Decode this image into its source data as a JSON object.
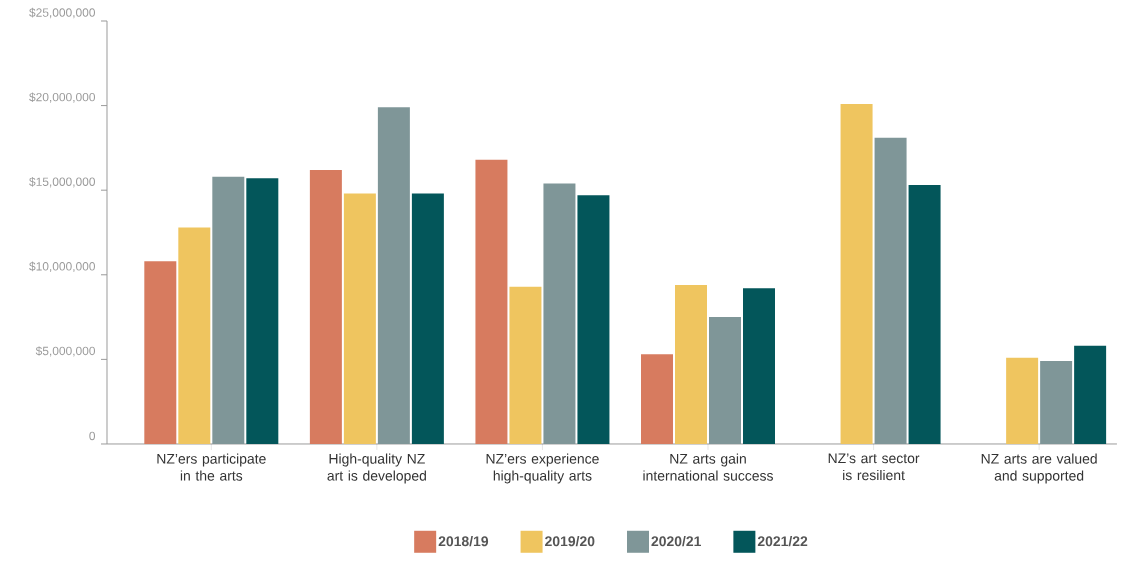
{
  "chart_data": {
    "type": "bar",
    "categories": [
      "NZ’ers participate in the arts",
      "High-quality NZ art is developed",
      "NZ’ers experience high-quality arts",
      "NZ arts gain international success",
      "NZ’s art sector is resilient",
      "NZ arts are valued and supported"
    ],
    "series": [
      {
        "name": "2018/19",
        "color": "#d77b5f",
        "values": [
          10800000,
          16200000,
          16800000,
          5300000,
          null,
          null
        ]
      },
      {
        "name": "2019/20",
        "color": "#efc55f",
        "values": [
          12800000,
          14800000,
          9300000,
          9400000,
          20100000,
          5100000
        ]
      },
      {
        "name": "2020/21",
        "color": "#7f9698",
        "values": [
          15800000,
          19900000,
          15400000,
          7500000,
          18100000,
          4900000
        ]
      },
      {
        "name": "2021/22",
        "color": "#03565a",
        "values": [
          15700000,
          14800000,
          14700000,
          9200000,
          15300000,
          5800000
        ]
      }
    ],
    "ylim": [
      0,
      25000000
    ],
    "yticks": [
      {
        "value": 0,
        "label": "0"
      },
      {
        "value": 5000000,
        "label": "$5,000,000"
      },
      {
        "value": 10000000,
        "label": "$10,000,000"
      },
      {
        "value": 15000000,
        "label": "$15,000,000"
      },
      {
        "value": 20000000,
        "label": "$20,000,000"
      },
      {
        "value": 25000000,
        "label": "$25,000,000"
      }
    ],
    "legend": "bottom"
  }
}
